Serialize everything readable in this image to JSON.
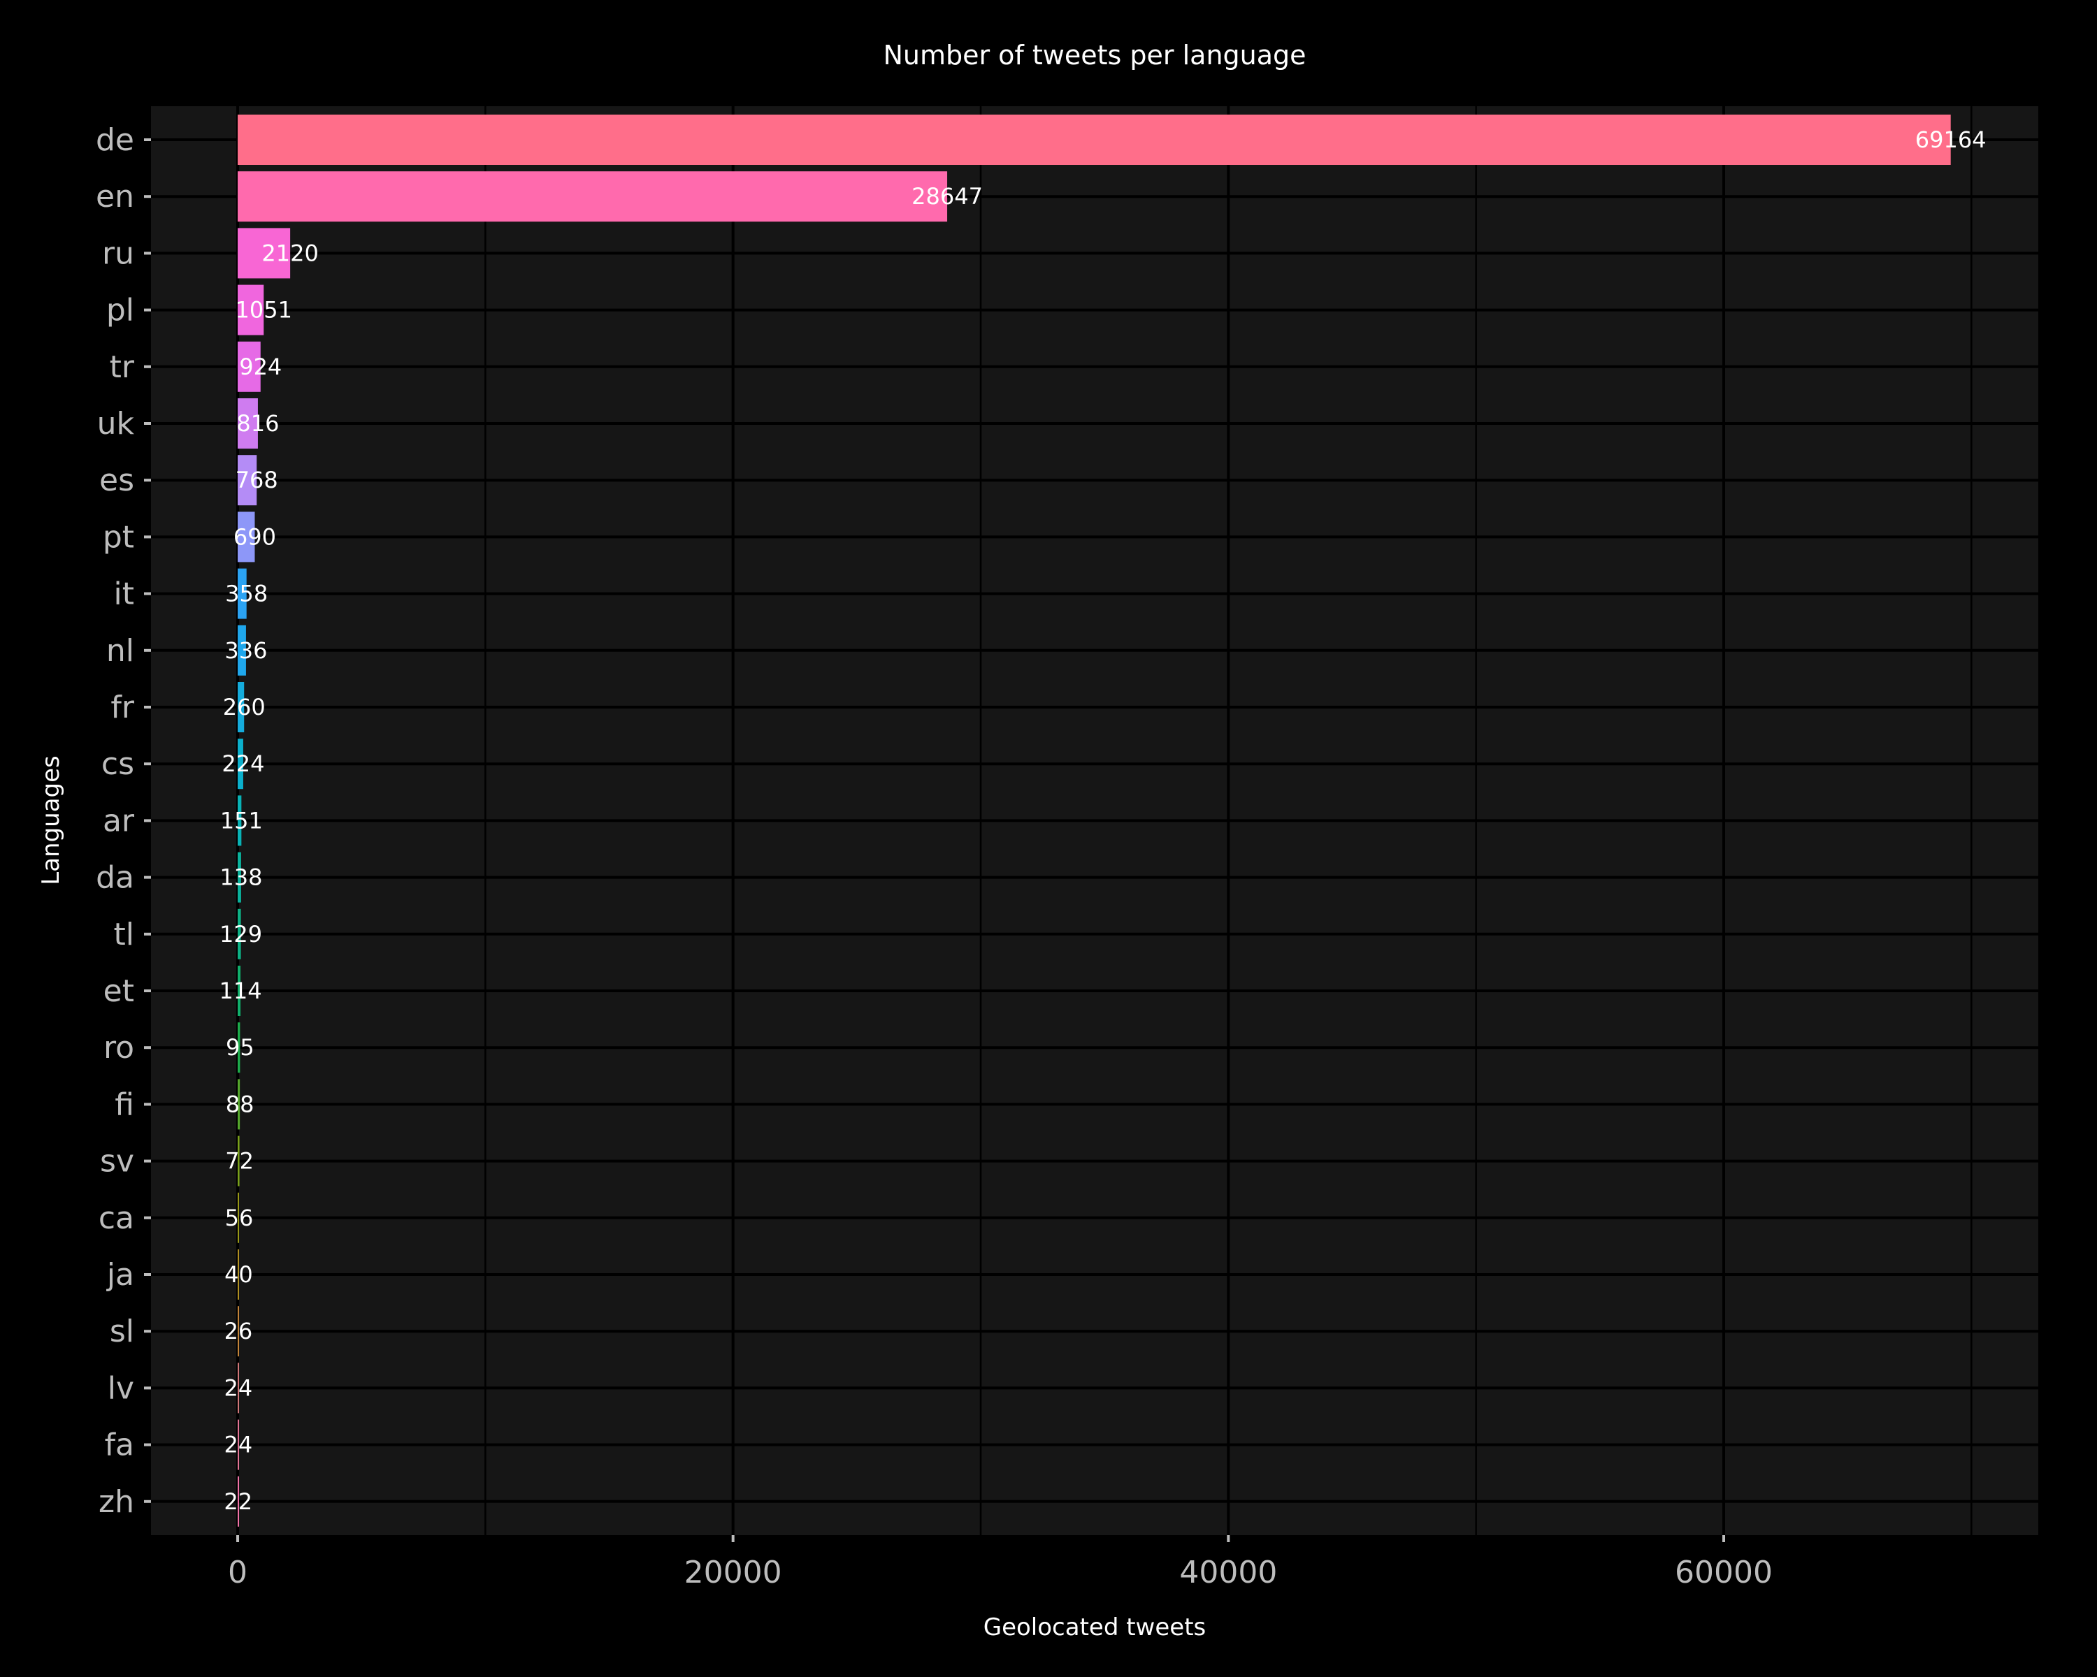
{
  "chart_data": {
    "type": "bar",
    "orientation": "horizontal",
    "title": "Number of tweets per language",
    "xlabel": "Geolocated tweets",
    "ylabel": "Languages",
    "xlim": [
      -3500,
      72700
    ],
    "xticks": [
      0,
      20000,
      40000,
      60000
    ],
    "grid": true,
    "categories": [
      "de",
      "en",
      "ru",
      "pl",
      "tr",
      "uk",
      "es",
      "pt",
      "it",
      "nl",
      "fr",
      "cs",
      "ar",
      "da",
      "tl",
      "et",
      "ro",
      "fi",
      "sv",
      "ca",
      "ja",
      "sl",
      "lv",
      "fa",
      "zh"
    ],
    "values": [
      69164,
      28647,
      2120,
      1051,
      924,
      816,
      768,
      690,
      358,
      336,
      260,
      224,
      151,
      138,
      129,
      114,
      95,
      88,
      72,
      56,
      40,
      26,
      24,
      24,
      22
    ],
    "colors": [
      "#ff6e8a",
      "#ff6aad",
      "#f866d4",
      "#f066de",
      "#e66ae6",
      "#cf7cf0",
      "#b48cf6",
      "#8d97f8",
      "#2ba3f3",
      "#1fa7ec",
      "#15acdc",
      "#0bb0cc",
      "#08b2b5",
      "#0ab29c",
      "#0db185",
      "#10b06c",
      "#1dae4c",
      "#55a82c",
      "#7ba21a",
      "#9a9a17",
      "#b29121",
      "#c48539",
      "#d2787a",
      "#e57596",
      "#f373a8"
    ]
  }
}
